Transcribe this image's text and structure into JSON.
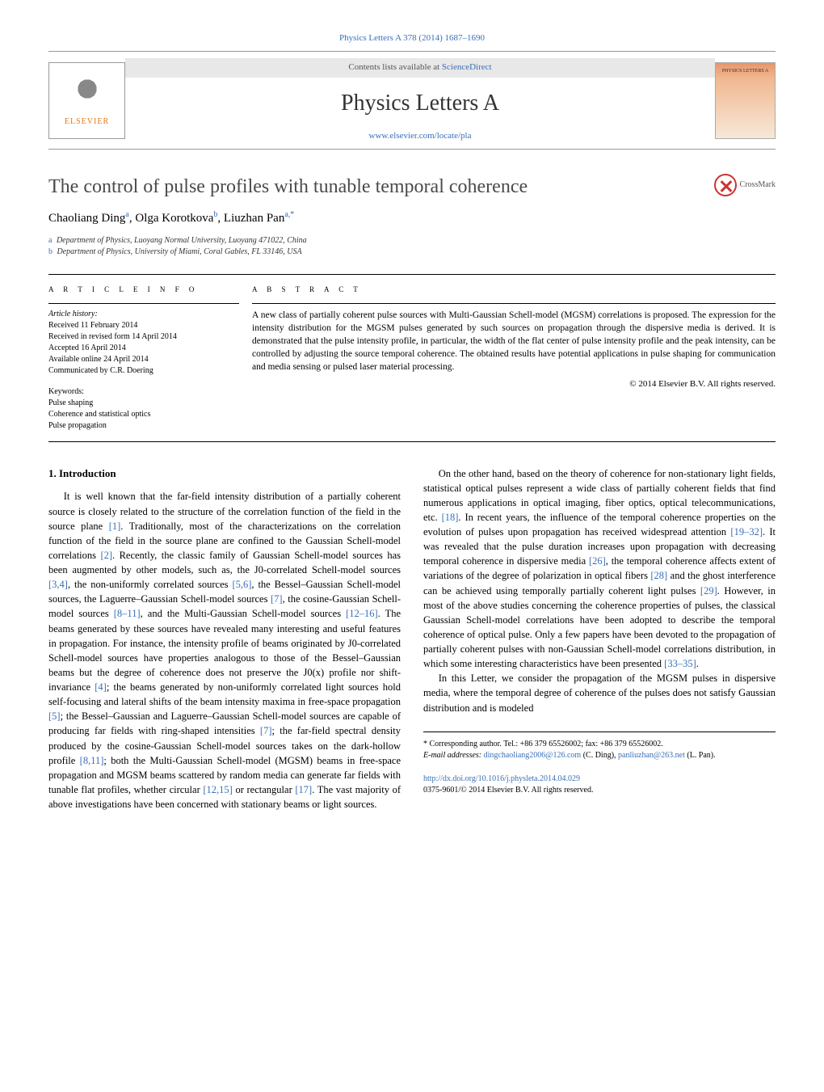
{
  "journal_ref": "Physics Letters A 378 (2014) 1687–1690",
  "contents_line_prefix": "Contents lists available at ",
  "contents_line_link": "ScienceDirect",
  "journal_title": "Physics Letters A",
  "journal_url": "www.elsevier.com/locate/pla",
  "elsevier_label": "ELSEVIER",
  "cover_label": "PHYSICS LETTERS A",
  "crossmark_label": "CrossMark",
  "article_title": "The control of pulse profiles with tunable temporal coherence",
  "authors_html": "Chaoliang Ding <sup>a</sup>, Olga Korotkova <sup>b</sup>, Liuzhan Pan <sup>a,</sup>*",
  "authors": [
    {
      "name": "Chaoliang Ding",
      "aff": "a"
    },
    {
      "name": "Olga Korotkova",
      "aff": "b"
    },
    {
      "name": "Liuzhan Pan",
      "aff": "a,*"
    }
  ],
  "affiliations": [
    {
      "ref": "a",
      "text": "Department of Physics, Luoyang Normal University, Luoyang 471022, China"
    },
    {
      "ref": "b",
      "text": "Department of Physics, University of Miami, Coral Gables, FL 33146, USA"
    }
  ],
  "article_info_heading": "A R T I C L E   I N F O",
  "abstract_heading": "A B S T R A C T",
  "history_label": "Article history:",
  "history": [
    "Received 11 February 2014",
    "Received in revised form 14 April 2014",
    "Accepted 16 April 2014",
    "Available online 24 April 2014",
    "Communicated by C.R. Doering"
  ],
  "keywords_label": "Keywords:",
  "keywords": [
    "Pulse shaping",
    "Coherence and statistical optics",
    "Pulse propagation"
  ],
  "abstract_text": "A new class of partially coherent pulse sources with Multi-Gaussian Schell-model (MGSM) correlations is proposed. The expression for the intensity distribution for the MGSM pulses generated by such sources on propagation through the dispersive media is derived. It is demonstrated that the pulse intensity profile, in particular, the width of the flat center of pulse intensity profile and the peak intensity, can be controlled by adjusting the source temporal coherence. The obtained results have potential applications in pulse shaping for communication and media sensing or pulsed laser material processing.",
  "copyright": "© 2014 Elsevier B.V. All rights reserved.",
  "intro_heading": "1. Introduction",
  "body_paragraphs": [
    "It is well known that the far-field intensity distribution of a partially coherent source is closely related to the structure of the correlation function of the field in the source plane [1]. Traditionally, most of the characterizations on the correlation function of the field in the source plane are confined to the Gaussian Schell-model correlations [2]. Recently, the classic family of Gaussian Schell-model sources has been augmented by other models, such as, the J0-correlated Schell-model sources [3,4], the non-uniformly correlated sources [5,6], the Bessel–Gaussian Schell-model sources, the Laguerre–Gaussian Schell-model sources [7], the cosine-Gaussian Schell-model sources [8–11], and the Multi-Gaussian Schell-model sources [12–16]. The beams generated by these sources have revealed many interesting and useful features in propagation. For instance, the intensity profile of beams originated by J0-correlated Schell-model sources have properties analogous to those of the Bessel–Gaussian beams but the degree of coherence does not preserve the J0(x) profile nor shift-invariance [4]; the beams generated by non-uniformly correlated light sources hold self-focusing and lateral shifts of the beam intensity maxima in free-space propagation [5]; the Bessel–Gaussian and Laguerre–Gaussian Schell-model sources are capable of producing far fields with ring-shaped intensities [7]; the far-field spectral density produced by the cosine-Gaussian Schell-model sources takes on the dark-hollow profile [8,11]; both the Multi-Gaussian Schell-model (MGSM) beams in free-space propagation and MGSM beams scattered by random media can generate far fields with tunable flat profiles, whether circular [12,15] or rectangular [17]. The vast majority of above investigations have been concerned with stationary beams or light sources.",
    "On the other hand, based on the theory of coherence for non-stationary light fields, statistical optical pulses represent a wide class of partially coherent fields that find numerous applications in optical imaging, fiber optics, optical telecommunications, etc. [18]. In recent years, the influence of the temporal coherence properties on the evolution of pulses upon propagation has received widespread attention [19–32]. It was revealed that the pulse duration increases upon propagation with decreasing temporal coherence in dispersive media [26], the temporal coherence affects extent of variations of the degree of polarization in optical fibers [28] and the ghost interference can be achieved using temporally partially coherent light pulses [29]. However, in most of the above studies concerning the coherence properties of pulses, the classical Gaussian Schell-model correlations have been adopted to describe the temporal coherence of optical pulse. Only a few papers have been devoted to the propagation of partially coherent pulses with non-Gaussian Schell-model correlations distribution, in which some interesting characteristics have been presented [33–35].",
    "In this Letter, we consider the propagation of the MGSM pulses in dispersive media, where the temporal degree of coherence of the pulses does not satisfy Gaussian distribution and is modeled"
  ],
  "corresponding": "* Corresponding author. Tel.: +86 379 65526002; fax: +86 379 65526002.",
  "emails_label": "E-mail addresses:",
  "emails": [
    {
      "addr": "dingchaoliang2006@126.com",
      "who": "(C. Ding)"
    },
    {
      "addr": "panliuzhan@263.net",
      "who": "(L. Pan)"
    }
  ],
  "doi": "http://dx.doi.org/10.1016/j.physleta.2014.04.029",
  "issn_line": "0375-9601/© 2014 Elsevier B.V. All rights reserved.",
  "colors": {
    "link": "#3a6fb7",
    "elsevier_orange": "#e67817",
    "text": "#000000",
    "rule": "#000000"
  }
}
